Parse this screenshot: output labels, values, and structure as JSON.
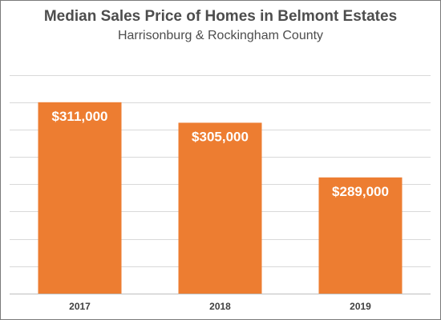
{
  "chart_data": {
    "type": "bar",
    "title": "Median Sales Price of Homes in Belmont Estates",
    "subtitle": "Harrisonburg & Rockingham County",
    "categories": [
      "2017",
      "2018",
      "2019"
    ],
    "values": [
      311000,
      305000,
      289000
    ],
    "data_labels": [
      "$311,000",
      "$305,000",
      "$289,000"
    ],
    "xlabel": "",
    "ylabel": "",
    "ylim": [
      255000,
      325000
    ],
    "grid": true,
    "legend": "none",
    "bar_color": "#ED7D31",
    "grid_color": "#d9d9d9",
    "axis_color": "#bfbfbf"
  }
}
